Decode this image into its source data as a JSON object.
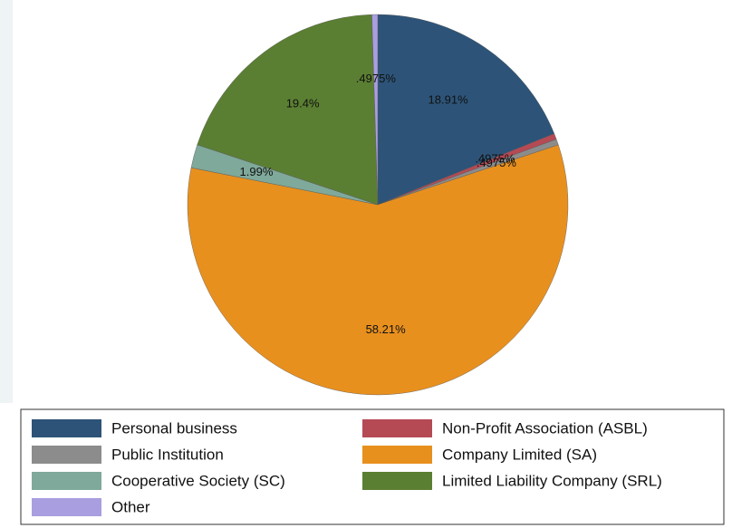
{
  "chart_data": {
    "type": "pie",
    "categories": [
      "Personal business",
      "Non-Profit Association (ASBL)",
      "Public Institution",
      "Company Limited (SA)",
      "Cooperative Society (SC)",
      "Limited Liability Company (SRL)",
      "Other"
    ],
    "values": [
      18.91,
      0.4975,
      0.4975,
      58.21,
      1.99,
      19.4,
      0.4975
    ],
    "value_labels": [
      "18.91%",
      ".4975%",
      ".4975%",
      "58.21%",
      "1.99%",
      "19.4%",
      ".4975%"
    ],
    "colors": [
      "#2d5478",
      "#b54a55",
      "#8c8c8c",
      "#e8901e",
      "#7fa99a",
      "#5b7f32",
      "#a99ee0"
    ]
  }
}
